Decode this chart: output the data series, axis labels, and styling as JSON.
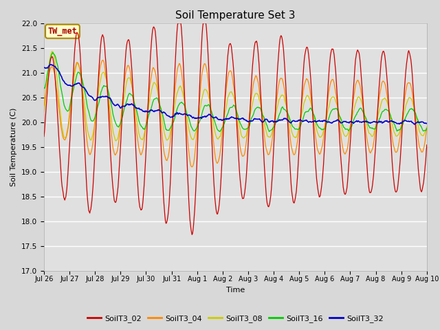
{
  "title": "Soil Temperature Set 3",
  "xlabel": "Time",
  "ylabel": "Soil Temperature (C)",
  "ylim": [
    17.0,
    22.0
  ],
  "yticks": [
    17.0,
    17.5,
    18.0,
    18.5,
    19.0,
    19.5,
    20.0,
    20.5,
    21.0,
    21.5,
    22.0
  ],
  "xtick_labels": [
    "Jul 26",
    "Jul 27",
    "Jul 28",
    "Jul 29",
    "Jul 30",
    "Jul 31",
    "Aug 1",
    "Aug 2",
    "Aug 3",
    "Aug 4",
    "Aug 5",
    "Aug 6",
    "Aug 7",
    "Aug 8",
    "Aug 9",
    "Aug 10"
  ],
  "series_colors": {
    "SoilT3_02": "#cc0000",
    "SoilT3_04": "#ff8800",
    "SoilT3_08": "#cccc00",
    "SoilT3_16": "#00cc00",
    "SoilT3_32": "#0000cc"
  },
  "background_color": "#d8d8d8",
  "plot_bg_color": "#e0e0e0",
  "annotation_text": "TW_met",
  "annotation_color": "#aa0000",
  "annotation_bg": "#ffffcc",
  "annotation_border": "#aa8800",
  "title_fontsize": 11,
  "legend_colors": [
    "#cc0000",
    "#ff8800",
    "#cccc00",
    "#00cc00",
    "#0000cc"
  ],
  "legend_labels": [
    "SoilT3_02",
    "SoilT3_04",
    "SoilT3_08",
    "SoilT3_16",
    "SoilT3_32"
  ]
}
